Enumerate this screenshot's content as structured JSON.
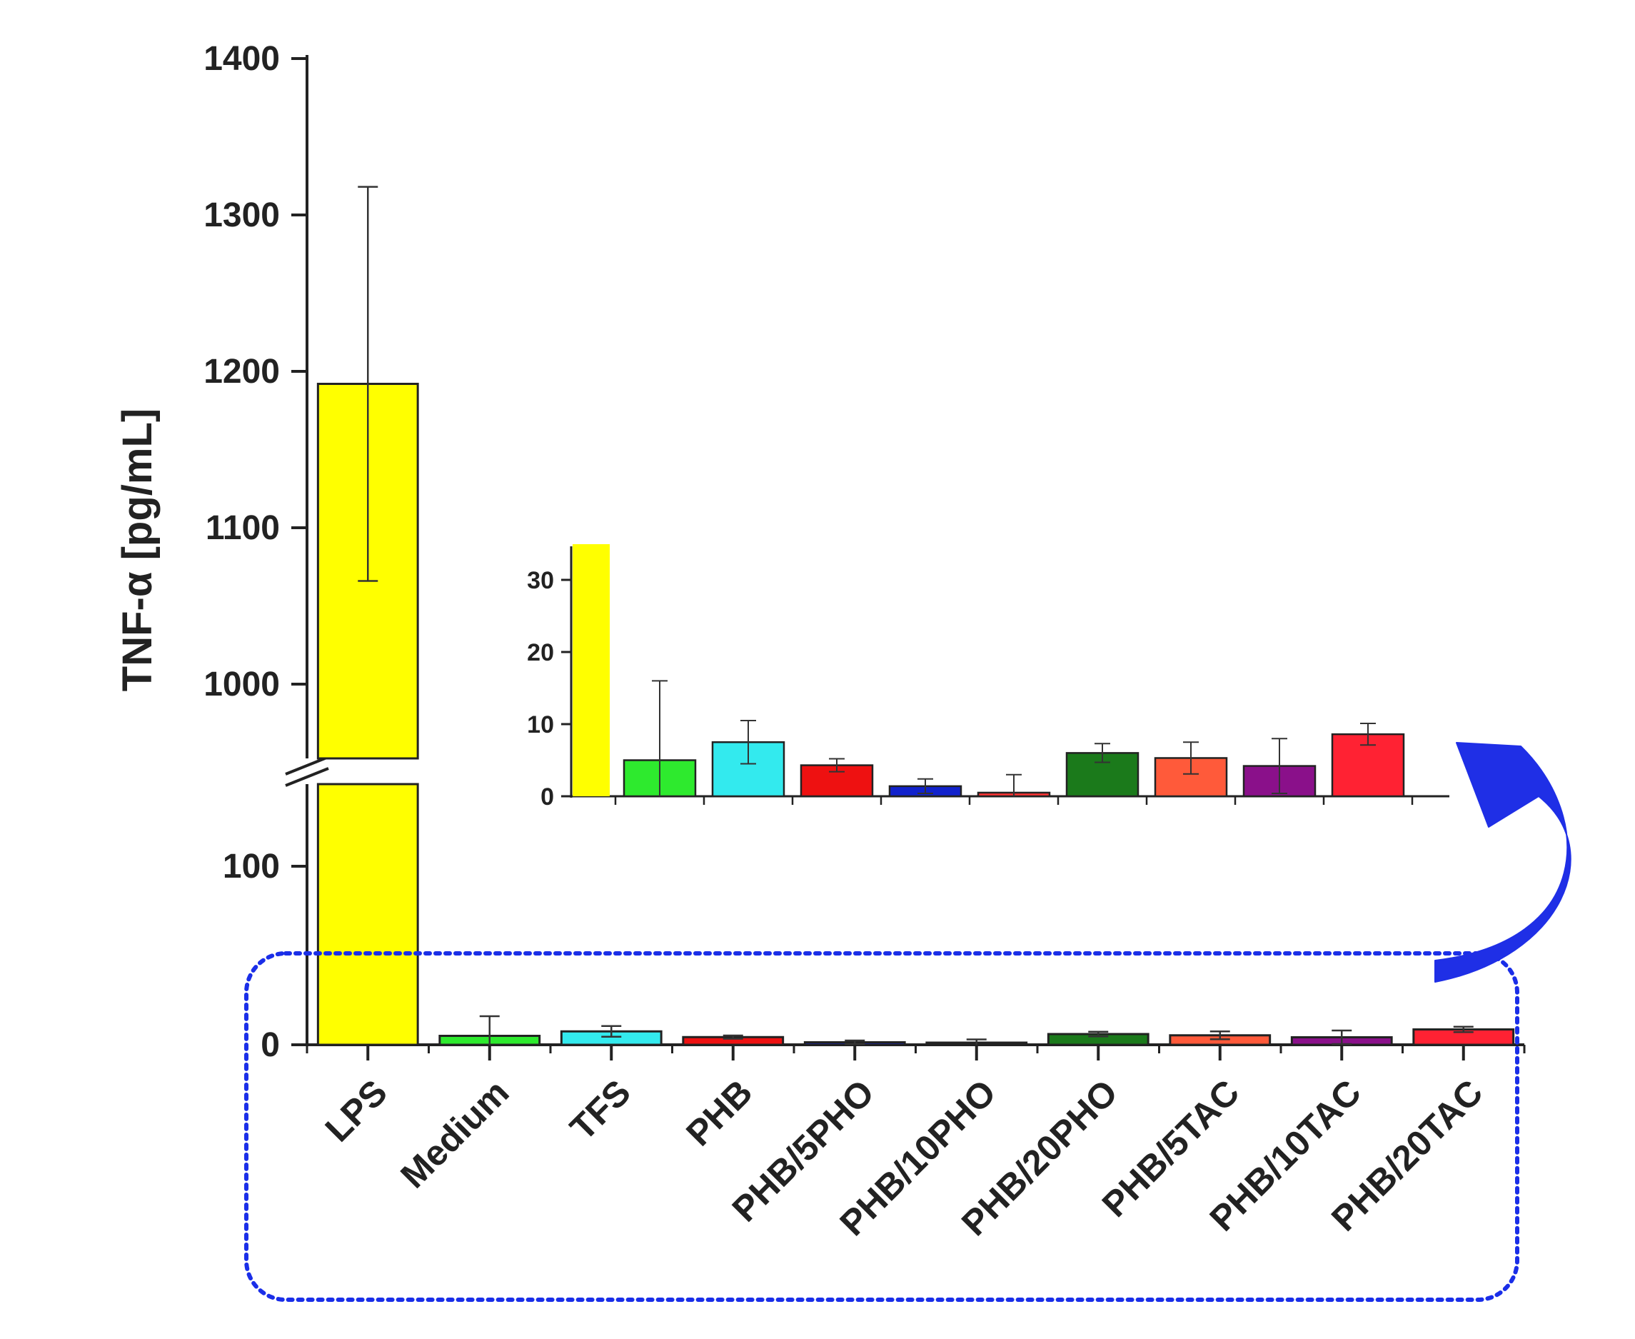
{
  "chart_data": {
    "type": "bar",
    "ylabel": "TNF-α [pg/mL]",
    "categories": [
      "LPS",
      "Medium",
      "TFS",
      "PHB",
      "PHB/5PHO",
      "PHB/10PHO",
      "PHB/20PHO",
      "PHB/5TAC",
      "PHB/10TAC",
      "PHB/20TAC"
    ],
    "values": [
      1192,
      5,
      7.5,
      4.3,
      1.4,
      0.5,
      6.0,
      5.3,
      4.2,
      8.6
    ],
    "errors": [
      126,
      11,
      3,
      0.9,
      1,
      2.5,
      1.3,
      2.2,
      3.8,
      1.5
    ],
    "colors": [
      "#ffff00",
      "#2eea2e",
      "#33eaee",
      "#ee1111",
      "#1122cc",
      "#ff3333",
      "#1b7a1b",
      "#ff5a3a",
      "#8a108a",
      "#ff2233"
    ],
    "yaxis": {
      "lower_range": [
        0,
        140
      ],
      "upper_range": [
        950,
        1400
      ],
      "lower_ticks": [
        0,
        100
      ],
      "upper_ticks": [
        1000,
        1100,
        1200,
        1300,
        1400
      ],
      "axis_break": true
    },
    "inset": {
      "ylim": [
        0,
        35
      ],
      "ticks": [
        0,
        10,
        20,
        30
      ],
      "lps_clipped": true
    },
    "highlight_box_color": "#1a2ee8",
    "arrow_color": "#1f2fe6"
  }
}
